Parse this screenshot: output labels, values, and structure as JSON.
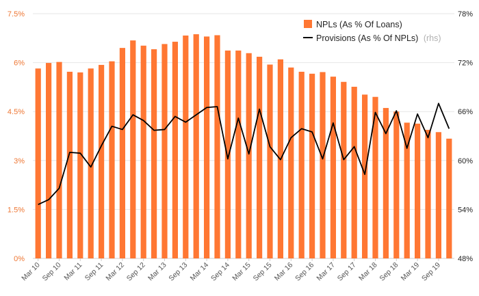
{
  "chart_data": {
    "type": "bar+line",
    "title": "",
    "x": [
      "Mar 10",
      "Jun 10",
      "Sep 10",
      "Dec 10",
      "Mar 11",
      "Jun 11",
      "Sep 11",
      "Dec 11",
      "Mar 12",
      "Jun 12",
      "Sep 12",
      "Dec 12",
      "Mar 13",
      "Jun 13",
      "Sep 13",
      "Dec 13",
      "Mar 14",
      "Jun 14",
      "Sep 14",
      "Dec 14",
      "Mar 15",
      "Jun 15",
      "Sep 15",
      "Dec 15",
      "Mar 16",
      "Jun 16",
      "Sep 16",
      "Dec 16",
      "Mar 17",
      "Jun 17",
      "Sep 17",
      "Dec 17",
      "Mar 18",
      "Jun 18",
      "Sep 18",
      "Dec 18",
      "Mar 19",
      "Jun 19",
      "Sep 19",
      "Dec 19"
    ],
    "x_tick_labels": [
      "Mar 10",
      "Sep 10",
      "Mar 11",
      "Sep 11",
      "Mar 12",
      "Sep 12",
      "Mar 13",
      "Sep 13",
      "Mar 14",
      "Sep 14",
      "Mar 15",
      "Sep 15",
      "Mar 16",
      "Sep 16",
      "Mar 17",
      "Sep 17",
      "Mar 18",
      "Sep 18",
      "Mar 19",
      "Sep 19"
    ],
    "series": [
      {
        "name": "NPLs (As % Of Loans)",
        "kind": "bar",
        "axis": "left",
        "color": "#ff7733",
        "values": [
          5.82,
          5.99,
          6.02,
          5.72,
          5.7,
          5.82,
          5.93,
          6.04,
          6.45,
          6.68,
          6.52,
          6.41,
          6.57,
          6.64,
          6.83,
          6.87,
          6.8,
          6.84,
          6.37,
          6.37,
          6.29,
          6.18,
          5.94,
          6.1,
          5.85,
          5.72,
          5.66,
          5.71,
          5.57,
          5.41,
          5.26,
          5.02,
          4.95,
          4.61,
          4.5,
          4.16,
          4.13,
          3.94,
          3.87,
          3.67
        ]
      },
      {
        "name": "Provisions (As % Of NPLs)",
        "name_suffix": "(rhs)",
        "kind": "line",
        "axis": "right",
        "color": "#000000",
        "values": [
          54.6,
          55.2,
          56.6,
          61.0,
          60.9,
          59.2,
          61.8,
          64.2,
          63.8,
          65.6,
          64.9,
          63.7,
          63.8,
          65.4,
          64.7,
          65.6,
          66.5,
          66.6,
          60.2,
          65.2,
          60.8,
          66.3,
          61.7,
          60.1,
          62.8,
          63.9,
          63.5,
          60.2,
          64.6,
          60.1,
          61.7,
          58.3,
          65.9,
          63.3,
          66.1,
          61.5,
          65.7,
          62.8,
          67.0,
          63.9
        ]
      }
    ],
    "y_left": {
      "range": [
        0,
        7.5
      ],
      "ticks": [
        "0%",
        "1.5%",
        "3%",
        "4.5%",
        "6%",
        "7.5%"
      ],
      "color": "#ee7734"
    },
    "y_right": {
      "range": [
        48,
        78
      ],
      "ticks": [
        "48%",
        "54%",
        "60%",
        "66%",
        "72%",
        "78%"
      ]
    },
    "grid": true,
    "legend_position": "top-right"
  }
}
